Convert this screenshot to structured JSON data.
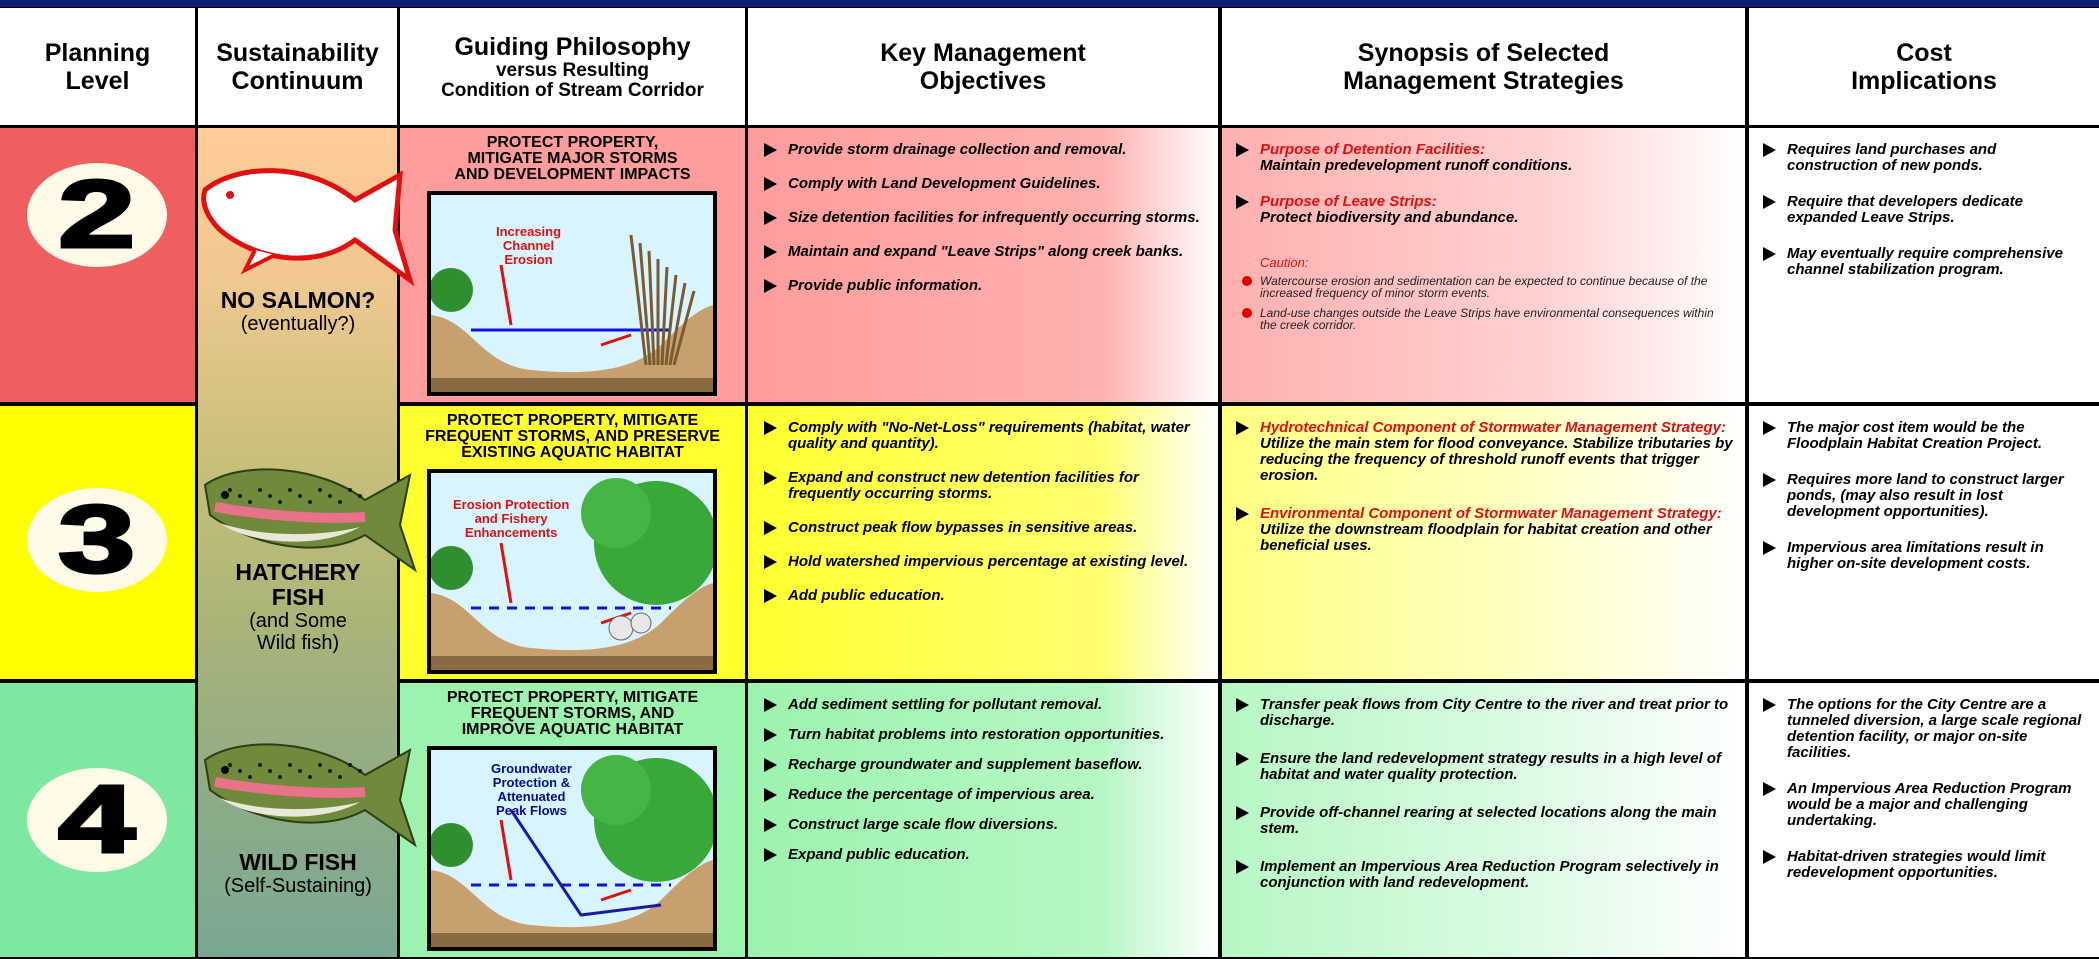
{
  "header": {
    "columns": [
      {
        "lines": [
          "Planning",
          "Level"
        ]
      },
      {
        "lines": [
          "Sustainability",
          "Continuum"
        ]
      },
      {
        "lines": [
          "Guiding Philosophy"
        ],
        "sub": [
          "versus Resulting",
          "Condition of Stream Corridor"
        ]
      },
      {
        "lines": [
          "Key Management",
          "Objectives"
        ]
      },
      {
        "lines": [
          "Synopsis of Selected",
          "Management Strategies"
        ]
      },
      {
        "lines": [
          "Cost",
          "Implications"
        ]
      }
    ]
  },
  "rows": [
    {
      "level": "2",
      "continuum": {
        "label": [
          "NO SALMON?"
        ],
        "note": [
          "(eventually?)"
        ]
      },
      "philosophy": {
        "heading": [
          "PROTECT PROPERTY,",
          "MITIGATE MAJOR STORMS",
          "AND DEVELOPMENT IMPACTS"
        ],
        "image_label": [
          "Increasing",
          "Channel",
          "Erosion"
        ]
      },
      "objectives": [
        "Provide storm drainage collection and removal.",
        "Comply with Land Development Guidelines.",
        "Size detention facilities for infrequently occurring storms.",
        "Maintain and expand \"Leave Strips\" along creek banks.",
        "Provide public information."
      ],
      "strategies": [
        {
          "title": "Purpose of Detention Facilities:",
          "text": "Maintain predevelopment runoff conditions."
        },
        {
          "title": "Purpose of Leave Strips:",
          "text": "Protect biodiversity and abundance."
        }
      ],
      "caution": {
        "title": "Caution:",
        "items": [
          "Watercourse erosion and sedimentation can be expected to continue because of the increased frequency of minor storm events.",
          "Land-use changes outside the Leave Strips have environmental consequences within the creek corridor."
        ]
      },
      "costs": [
        "Requires land purchases and construction of new ponds.",
        "Require that developers dedicate expanded Leave Strips.",
        "May eventually require comprehensive channel stabilization program."
      ]
    },
    {
      "level": "3",
      "continuum": {
        "label": [
          "HATCHERY",
          "FISH"
        ],
        "note": [
          "(and Some",
          "Wild fish)"
        ]
      },
      "philosophy": {
        "heading": [
          "PROTECT PROPERTY, MITIGATE",
          "FREQUENT STORMS, AND PRESERVE",
          "EXISTING AQUATIC HABITAT"
        ],
        "image_label": [
          "Erosion Protection",
          "and Fishery",
          "Enhancements"
        ]
      },
      "objectives": [
        "Comply with \"No-Net-Loss\" requirements (habitat, water quality and quantity).",
        "Expand and construct new detention facilities for frequently occurring storms.",
        "Construct peak flow bypasses in sensitive areas.",
        "Hold watershed impervious percentage at existing level.",
        "Add public education."
      ],
      "strategies": [
        {
          "title": "Hydrotechnical Component of Stormwater Management Strategy:",
          "text": "Utilize the main stem for flood conveyance. Stabilize tributaries by reducing the frequency of threshold runoff events that trigger erosion."
        },
        {
          "title": "Environmental Component of Stormwater Management Strategy:",
          "text": "Utilize the downstream floodplain for habitat creation and other beneficial uses."
        }
      ],
      "costs": [
        "The major cost item would be the Floodplain Habitat Creation Project.",
        "Requires more land to construct larger ponds, (may also result in lost development opportunities).",
        "Impervious area limitations result in higher on-site development costs."
      ]
    },
    {
      "level": "4",
      "continuum": {
        "label": [
          "WILD FISH"
        ],
        "note": [
          "(Self-Sustaining)"
        ]
      },
      "philosophy": {
        "heading": [
          "PROTECT PROPERTY, MITIGATE",
          "FREQUENT STORMS, AND",
          "IMPROVE AQUATIC HABITAT"
        ],
        "image_label": [
          "Groundwater",
          "Protection &",
          "Attenuated",
          "Peak Flows"
        ]
      },
      "objectives": [
        "Add sediment settling for pollutant removal.",
        "Turn habitat problems into restoration opportunities.",
        "Recharge groundwater and supplement baseflow.",
        "Reduce the percentage of impervious area.",
        "Construct large scale flow diversions.",
        "Expand public education."
      ],
      "strategies": [
        {
          "text": "Transfer peak flows from City Centre to the river and treat prior to discharge."
        },
        {
          "text": "Ensure the land redevelopment strategy results in a high level of habitat and water quality protection."
        },
        {
          "text": "Provide off-channel rearing at selected locations along the main stem."
        },
        {
          "text": "Implement an Impervious Area Reduction Program selectively in conjunction with land redevelopment."
        }
      ],
      "costs": [
        "The options for the City Centre are a tunneled diversion, a large scale regional detention facility, or major on-site facilities.",
        "An Impervious Area Reduction Program would be a major and challenging undertaking.",
        "Habitat-driven strategies would limit redevelopment opportunities."
      ]
    }
  ]
}
